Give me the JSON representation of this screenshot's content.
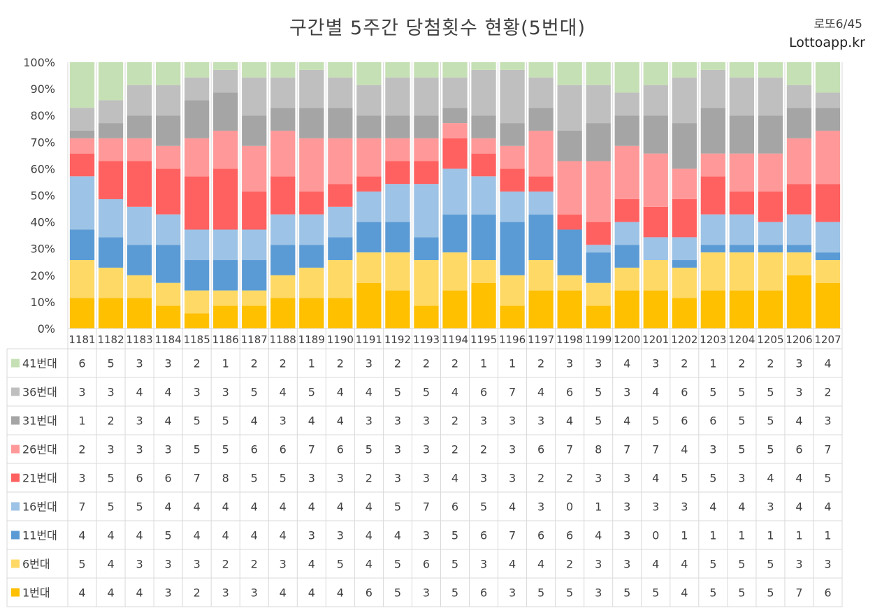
{
  "header": {
    "title": "구간별 5주간 당첨횟수 현황(5번대)",
    "brand_line1": "로또6/45",
    "brand_line2": "Lottoapp.kr"
  },
  "chart_data": {
    "type": "bar",
    "stacked": "percent",
    "title": "구간별 5주간 당첨횟수 현황(5번대)",
    "ylim": [
      0,
      100
    ],
    "yticks": [
      "0%",
      "10%",
      "20%",
      "30%",
      "40%",
      "50%",
      "60%",
      "70%",
      "80%",
      "90%",
      "100%"
    ],
    "grid": false,
    "legend": "data-table-bottom",
    "categories": [
      "1181",
      "1182",
      "1183",
      "1184",
      "1185",
      "1186",
      "1187",
      "1188",
      "1189",
      "1190",
      "1191",
      "1192",
      "1193",
      "1194",
      "1195",
      "1196",
      "1197",
      "1198",
      "1199",
      "1200",
      "1201",
      "1202",
      "1203",
      "1204",
      "1205",
      "1206",
      "1207"
    ],
    "series": [
      {
        "name": "1번대",
        "color": "#FFC000",
        "values": [
          4,
          4,
          4,
          3,
          2,
          3,
          3,
          4,
          4,
          4,
          6,
          5,
          3,
          5,
          6,
          3,
          5,
          5,
          3,
          5,
          5,
          4,
          5,
          5,
          5,
          7,
          6
        ]
      },
      {
        "name": "6번대",
        "color": "#FFD966",
        "values": [
          5,
          4,
          3,
          3,
          3,
          2,
          2,
          3,
          4,
          5,
          4,
          5,
          6,
          5,
          3,
          4,
          4,
          2,
          3,
          3,
          4,
          4,
          5,
          5,
          5,
          3,
          3
        ]
      },
      {
        "name": "11번대",
        "color": "#5B9BD5",
        "values": [
          4,
          4,
          4,
          5,
          4,
          4,
          4,
          4,
          3,
          3,
          4,
          4,
          3,
          5,
          6,
          7,
          6,
          6,
          4,
          3,
          0,
          1,
          1,
          1,
          1,
          1,
          1
        ]
      },
      {
        "name": "16번대",
        "color": "#9DC3E6",
        "values": [
          7,
          5,
          5,
          4,
          4,
          4,
          4,
          4,
          4,
          4,
          4,
          5,
          7,
          6,
          5,
          4,
          3,
          0,
          1,
          3,
          3,
          3,
          4,
          4,
          3,
          4,
          4
        ]
      },
      {
        "name": "21번대",
        "color": "#FF6161",
        "values": [
          3,
          5,
          6,
          6,
          7,
          8,
          5,
          5,
          3,
          3,
          2,
          3,
          3,
          4,
          3,
          3,
          2,
          2,
          3,
          3,
          4,
          5,
          5,
          3,
          4,
          4,
          5
        ]
      },
      {
        "name": "26번대",
        "color": "#FF9999",
        "values": [
          2,
          3,
          3,
          3,
          5,
          5,
          6,
          6,
          7,
          6,
          5,
          3,
          3,
          2,
          2,
          3,
          6,
          7,
          8,
          7,
          7,
          4,
          3,
          5,
          5,
          6,
          7
        ]
      },
      {
        "name": "31번대",
        "color": "#A5A5A5",
        "values": [
          1,
          2,
          3,
          4,
          5,
          5,
          4,
          3,
          4,
          4,
          3,
          3,
          3,
          2,
          3,
          3,
          3,
          4,
          5,
          4,
          5,
          6,
          6,
          5,
          5,
          4,
          3
        ]
      },
      {
        "name": "36번대",
        "color": "#BFBFBF",
        "values": [
          3,
          3,
          4,
          4,
          3,
          3,
          5,
          4,
          5,
          4,
          4,
          5,
          5,
          4,
          6,
          7,
          4,
          6,
          5,
          3,
          4,
          6,
          5,
          5,
          5,
          3,
          2
        ]
      },
      {
        "name": "41번대",
        "color": "#C5E0B4",
        "values": [
          6,
          5,
          3,
          3,
          2,
          1,
          2,
          2,
          1,
          2,
          3,
          2,
          2,
          2,
          1,
          1,
          2,
          3,
          3,
          4,
          3,
          2,
          1,
          2,
          2,
          3,
          4
        ]
      }
    ]
  }
}
